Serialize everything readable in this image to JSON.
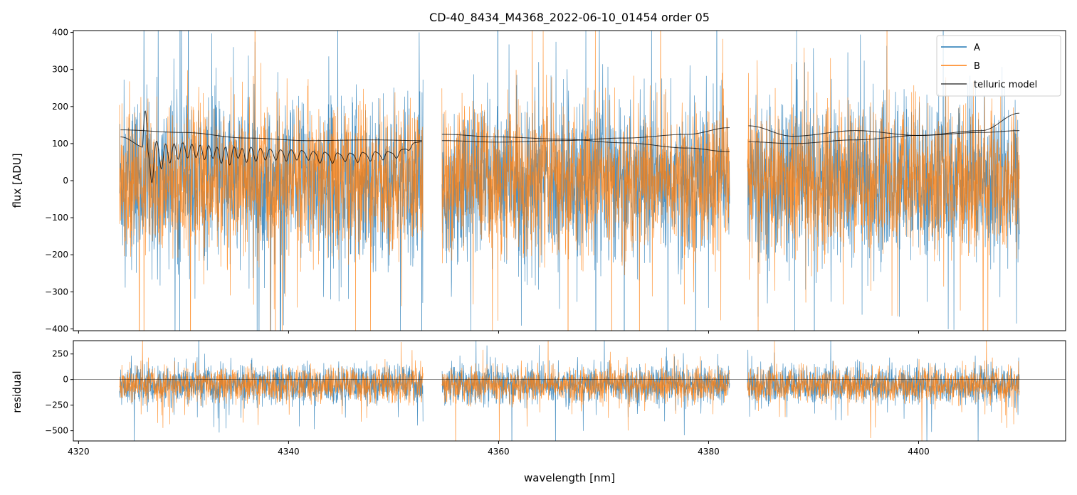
{
  "chart_data": {
    "title": "CD-40_8434_M4368_2022-06-10_01454  order 05",
    "colors": {
      "A": "#1f77b4",
      "B": "#ff7f0e",
      "telluric": "#000000"
    },
    "x_axis": {
      "label": "wavelength [nm]",
      "lim": [
        4319.5,
        4414.0
      ],
      "ticks": [
        4320,
        4340,
        4360,
        4380,
        4400
      ],
      "tick_labels": [
        "4320",
        "4340",
        "4360",
        "4380",
        "4400"
      ]
    },
    "segments": [
      {
        "start": 4323.9,
        "end": 4352.8
      },
      {
        "start": 4354.6,
        "end": 4382.0
      },
      {
        "start": 4383.7,
        "end": 4409.6
      }
    ],
    "panels": [
      {
        "id": "flux",
        "type": "line",
        "ylabel": "flux [ADU]",
        "ylim": [
          -405,
          405
        ],
        "yticks": [
          -400,
          -300,
          -200,
          -100,
          0,
          100,
          200,
          300,
          400
        ],
        "ytick_labels": [
          "−400",
          "−300",
          "−200",
          "−100",
          "0",
          "100",
          "200",
          "300",
          "400"
        ],
        "series": [
          {
            "name": "A",
            "noise_sigma": 110,
            "mean": 0
          },
          {
            "name": "B",
            "noise_sigma": 100,
            "mean": 0
          }
        ],
        "telluric_model": {
          "name": "telluric model",
          "smooth_curves": [
            {
              "segment": 0,
              "x": [
                4324,
                4330,
                4336,
                4342,
                4348,
                4352.7
              ],
              "y": [
                137,
                130,
                115,
                108,
                110,
                108
              ]
            },
            {
              "segment": 1,
              "x": [
                4354.6,
                4360,
                4366,
                4372,
                4378,
                4382
              ],
              "y": [
                125,
                118,
                112,
                102,
                88,
                78
              ]
            },
            {
              "segment": 1,
              "x": [
                4354.6,
                4360,
                4366,
                4372,
                4378,
                4382
              ],
              "y": [
                108,
                104,
                108,
                115,
                125,
                143
              ]
            },
            {
              "segment": 2,
              "x": [
                4383.8,
                4388,
                4394,
                4400,
                4406,
                4409.6
              ],
              "y": [
                148,
                120,
                135,
                122,
                135,
                182
              ]
            },
            {
              "segment": 2,
              "x": [
                4383.8,
                4388,
                4394,
                4400,
                4406,
                4409.6
              ],
              "y": [
                105,
                100,
                110,
                122,
                130,
                135
              ]
            }
          ],
          "absorption_curve": {
            "segment": 0,
            "x": [
              4324,
              4326.5,
              4330,
              4335,
              4340,
              4345,
              4350,
              4352.7
            ],
            "y": [
              118,
              88,
              95,
              85,
              78,
              70,
              75,
              105
            ],
            "lines_at": [
              4327.0,
              4327.9,
              4328.7,
              4329.5,
              4330.4,
              4331.2,
              4332.0,
              4332.8,
              4333.6,
              4334.4,
              4335.2,
              4336.0,
              4336.9,
              4337.8,
              4338.8,
              4339.8,
              4340.8,
              4341.9,
              4343.0,
              4344.2,
              4345.4,
              4346.6,
              4347.8,
              4349.0,
              4350.3,
              4351.5
            ],
            "line_depths": [
              110,
              70,
              55,
              45,
              40,
              38,
              42,
              35,
              48,
              52,
              30,
              42,
              36,
              30,
              28,
              30,
              26,
              24,
              30,
              28,
              22,
              26,
              24,
              22,
              18,
              12
            ]
          }
        },
        "legend": {
          "location": "upper right",
          "entries": [
            "A",
            "B",
            "telluric model"
          ]
        }
      },
      {
        "id": "residual",
        "type": "line",
        "ylabel": "residual",
        "ylim": [
          -600,
          380
        ],
        "yticks": [
          250,
          0,
          -250,
          -500
        ],
        "ytick_labels": [
          "250",
          "0",
          "−250",
          "−500"
        ],
        "zero_line": 0,
        "series": [
          {
            "name": "A",
            "noise_sigma": 95,
            "mean": -50
          },
          {
            "name": "B",
            "noise_sigma": 85,
            "mean": -55
          }
        ]
      }
    ]
  }
}
